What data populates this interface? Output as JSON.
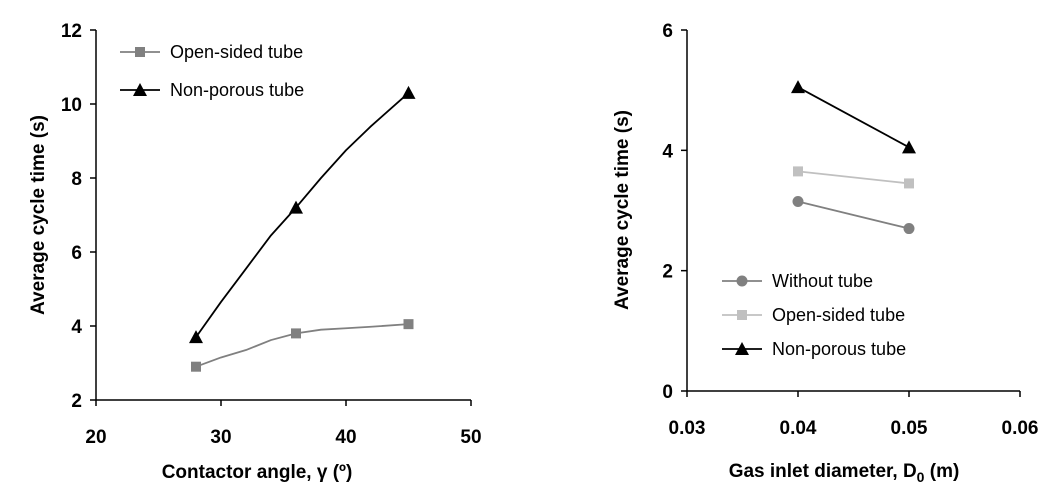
{
  "chart_data": [
    {
      "type": "line",
      "xlabel": "Contactor angle, γ (º)",
      "ylabel": "Average cycle time (s)",
      "xlim": [
        20,
        50
      ],
      "ylim": [
        2,
        12
      ],
      "xticks": [
        "20",
        "30",
        "40",
        "50"
      ],
      "yticks": [
        "2",
        "4",
        "6",
        "8",
        "10",
        "12"
      ],
      "legend_position": "top-left",
      "series": [
        {
          "name": "Open-sided tube",
          "color": "#808080",
          "marker": "square",
          "x": [
            28,
            36,
            45
          ],
          "y": [
            2.9,
            3.8,
            4.05
          ],
          "curve_x": [
            28,
            30,
            32,
            34,
            36,
            38,
            40,
            42,
            45
          ],
          "curve_y": [
            2.9,
            3.15,
            3.35,
            3.62,
            3.8,
            3.9,
            3.94,
            3.98,
            4.05
          ]
        },
        {
          "name": "Non-porous tube",
          "color": "#000000",
          "marker": "triangle",
          "x": [
            28,
            36,
            45
          ],
          "y": [
            3.7,
            7.2,
            10.3
          ],
          "curve_x": [
            28,
            30,
            32,
            34,
            36,
            38,
            40,
            42,
            45
          ],
          "curve_y": [
            3.7,
            4.65,
            5.55,
            6.45,
            7.2,
            8.0,
            8.75,
            9.4,
            10.3
          ]
        }
      ]
    },
    {
      "type": "line",
      "xlabel": "Gas inlet diameter, D",
      "xlabel_sub": "0",
      "xlabel_suffix": " (m)",
      "ylabel": "Average cycle time (s)",
      "xlim": [
        0.03,
        0.06
      ],
      "ylim": [
        0,
        6
      ],
      "xticks": [
        "0.03",
        "0.04",
        "0.05",
        "0.06"
      ],
      "yticks": [
        "0",
        "2",
        "4",
        "6"
      ],
      "legend_position": "bottom-left",
      "series": [
        {
          "name": "Without tube",
          "color": "#808080",
          "marker": "circle",
          "x": [
            0.04,
            0.05
          ],
          "y": [
            3.15,
            2.7
          ]
        },
        {
          "name": "Open-sided tube",
          "color": "#c0c0c0",
          "marker": "square",
          "x": [
            0.04,
            0.05
          ],
          "y": [
            3.65,
            3.45
          ]
        },
        {
          "name": "Non-porous tube",
          "color": "#000000",
          "marker": "triangle",
          "x": [
            0.04,
            0.05
          ],
          "y": [
            5.05,
            4.05
          ]
        }
      ]
    }
  ]
}
